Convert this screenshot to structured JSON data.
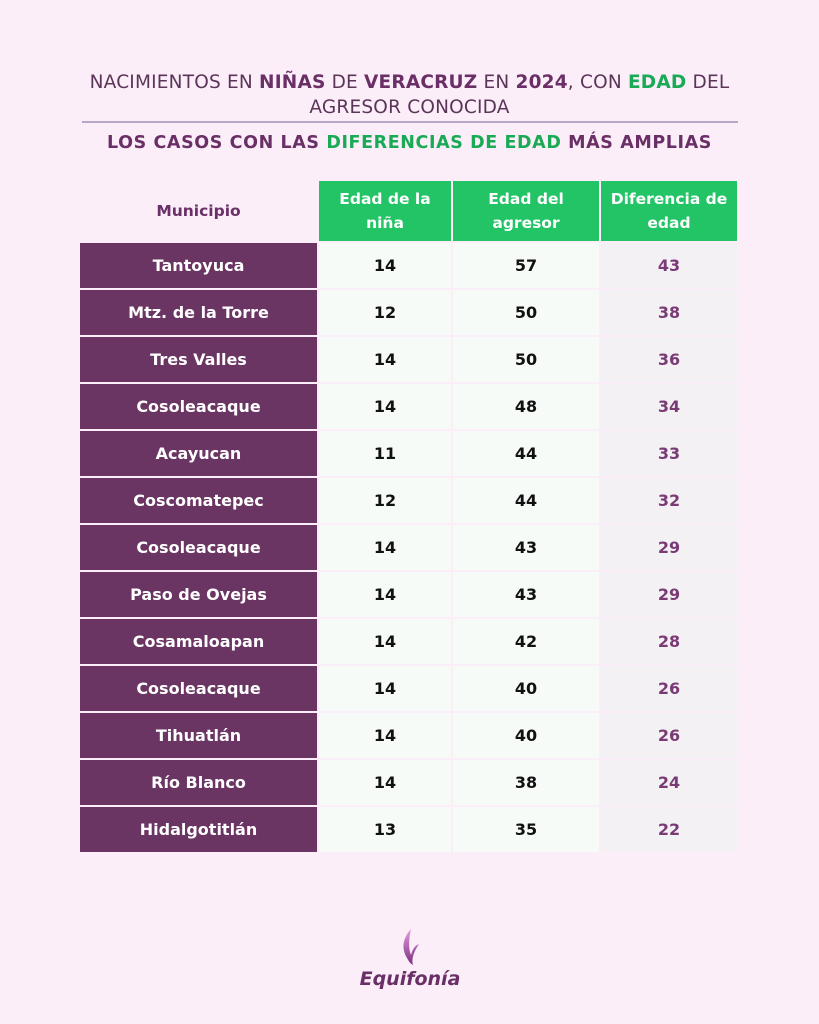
{
  "title": {
    "p1": "NACIMIENTOS EN ",
    "p2": "NIÑAS",
    "p3": " DE ",
    "p4": "VERACRUZ",
    "p5": " EN ",
    "p6": "2024",
    "p7": ", CON ",
    "p8": "EDAD",
    "p9": " DEL AGRESOR CONOCIDA"
  },
  "subtitle": {
    "p1": "LOS CASOS CON LAS ",
    "p2": "DIFERENCIAS DE EDAD",
    "p3": " MÁS AMPLIAS"
  },
  "table": {
    "headers": [
      "Municipio",
      "Edad  de la niña",
      "Edad del agresor",
      "Diferencia de edad"
    ],
    "rows": [
      [
        "Tantoyuca",
        "14",
        "57",
        "43"
      ],
      [
        "Mtz. de la Torre",
        "12",
        "50",
        "38"
      ],
      [
        "Tres Valles",
        "14",
        "50",
        "36"
      ],
      [
        "Cosoleacaque",
        "14",
        "48",
        "34"
      ],
      [
        "Acayucan",
        "11",
        "44",
        "33"
      ],
      [
        "Coscomatepec",
        "12",
        "44",
        "32"
      ],
      [
        "Cosoleacaque",
        "14",
        "43",
        "29"
      ],
      [
        "Paso de Ovejas",
        "14",
        "43",
        "29"
      ],
      [
        "Cosamaloapan",
        "14",
        "42",
        "28"
      ],
      [
        "Cosoleacaque",
        "14",
        "40",
        "26"
      ],
      [
        "Tihuatlán",
        "14",
        "40",
        "26"
      ],
      [
        "Río Blanco",
        "14",
        "38",
        "24"
      ],
      [
        "Hidalgotitlán",
        "13",
        "35",
        "22"
      ]
    ]
  },
  "logo": {
    "text": "Equifonía",
    "icon": "feather-flame-icon"
  },
  "colors": {
    "background": "#fbeef9",
    "purple": "#6b3563",
    "green": "#22c466",
    "text_purple": "#6a2f66"
  }
}
